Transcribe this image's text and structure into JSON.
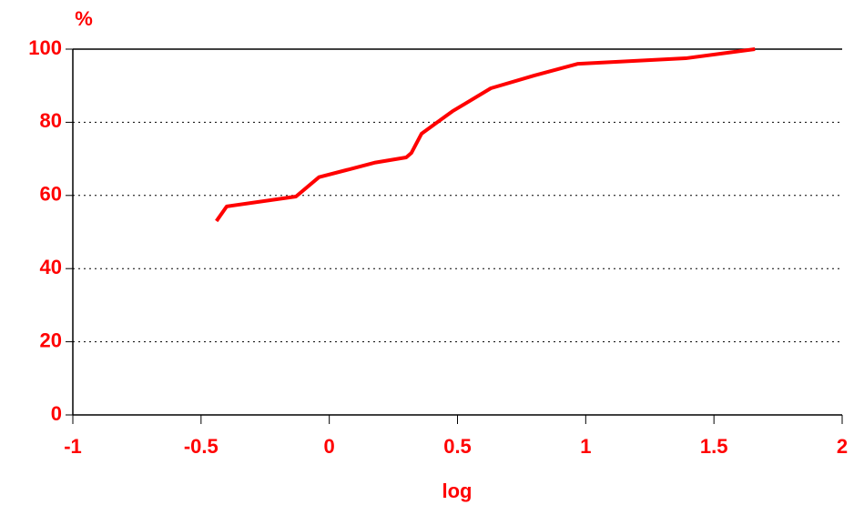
{
  "chart_data": {
    "type": "line",
    "xlabel": "log",
    "ylabel": "%",
    "x": [
      -0.44,
      -0.4,
      -0.13,
      -0.04,
      0.18,
      0.3,
      0.32,
      0.36,
      0.48,
      0.63,
      0.8,
      0.97,
      1.39,
      1.66
    ],
    "series": [
      {
        "color": "#ff0000",
        "values": [
          53,
          57,
          59.7,
          65,
          69,
          70.4,
          71.6,
          76.9,
          83,
          89.3,
          92.8,
          96,
          97.5,
          100
        ]
      }
    ],
    "xlim": [
      -1,
      2
    ],
    "xticks": [
      -1,
      -0.5,
      0,
      0.5,
      1,
      1.5,
      2
    ],
    "ylim": [
      0,
      100
    ],
    "yticks": [
      0,
      20,
      40,
      60,
      80,
      100
    ],
    "grid": true
  }
}
